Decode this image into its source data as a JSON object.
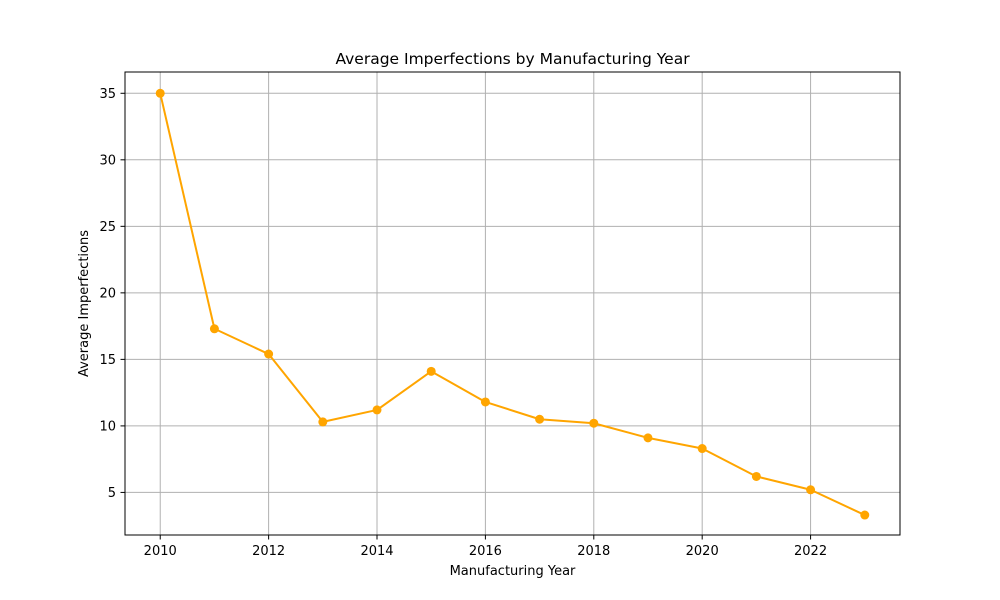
{
  "chart_data": {
    "type": "line",
    "title": "Average Imperfections by Manufacturing Year",
    "xlabel": "Manufacturing Year",
    "ylabel": "Average Imperfections",
    "x": [
      2010,
      2011,
      2012,
      2013,
      2014,
      2015,
      2016,
      2017,
      2018,
      2019,
      2020,
      2021,
      2022,
      2023
    ],
    "series": [
      {
        "values": [
          35.0,
          17.3,
          15.4,
          10.3,
          11.2,
          14.1,
          11.8,
          10.5,
          10.2,
          9.1,
          8.3,
          6.2,
          5.2,
          3.3
        ]
      }
    ],
    "xticks": [
      "2010",
      "2012",
      "2014",
      "2016",
      "2018",
      "2020",
      "2022"
    ],
    "yticks": [
      "5",
      "10",
      "15",
      "20",
      "25",
      "30",
      "35"
    ],
    "xlim": [
      2009.35,
      2023.65
    ],
    "ylim": [
      1.8,
      36.6
    ],
    "grid": true,
    "line_color": "#ffa500",
    "grid_color": "#b0b0b0"
  }
}
